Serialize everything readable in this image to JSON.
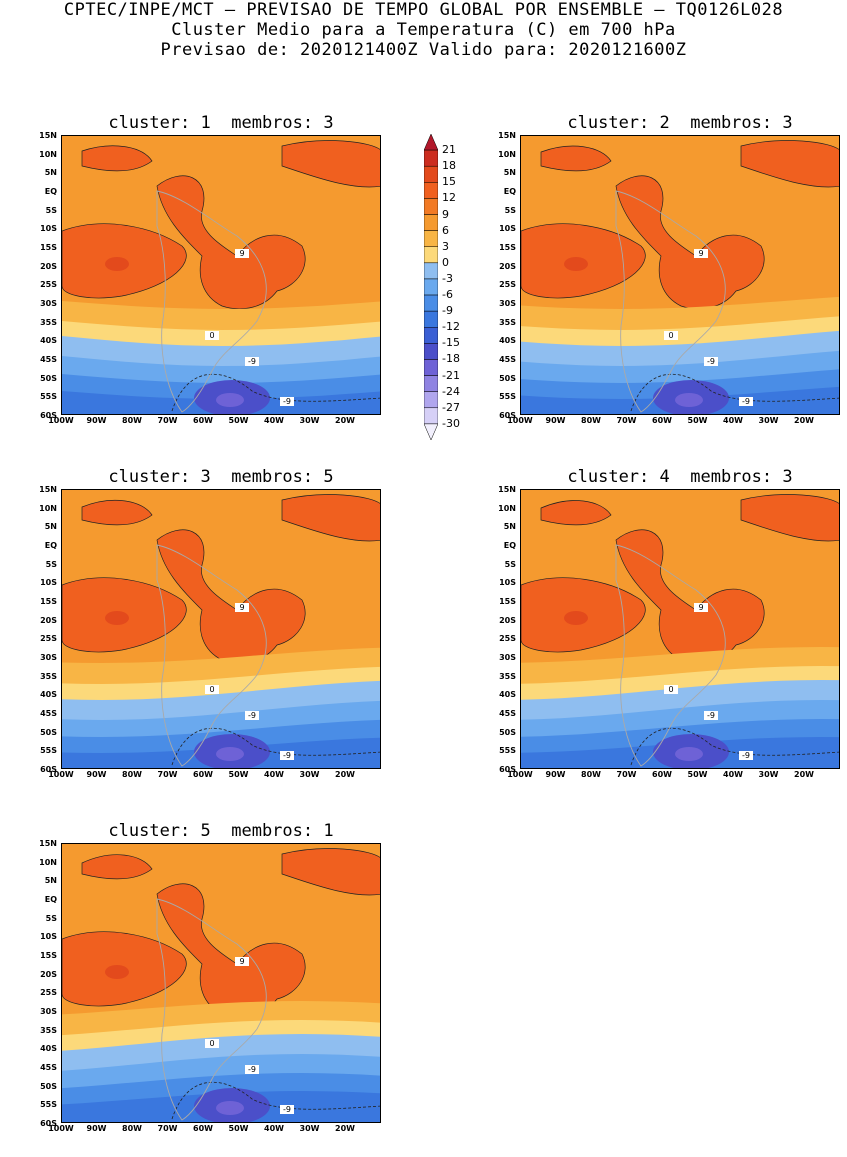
{
  "header": {
    "line1": "CPTEC/INPE/MCT — PREVISAO DE TEMPO GLOBAL POR ENSEMBLE — TQ0126L028",
    "line2": "Cluster Medio para a Temperatura (C) em 700 hPa",
    "line3": "Previsao de: 2020121400Z   Valido para: 2020121600Z"
  },
  "panels": [
    {
      "cluster_label": "cluster: 1",
      "members_label": "membros: 3"
    },
    {
      "cluster_label": "cluster: 2",
      "members_label": "membros: 3"
    },
    {
      "cluster_label": "cluster: 3",
      "members_label": "membros: 5"
    },
    {
      "cluster_label": "cluster: 4",
      "members_label": "membros: 3"
    },
    {
      "cluster_label": "cluster: 5",
      "members_label": "membros: 1"
    }
  ],
  "lat_labels": [
    "15N",
    "10N",
    "5N",
    "EQ",
    "5S",
    "10S",
    "15S",
    "20S",
    "25S",
    "30S",
    "35S",
    "40S",
    "45S",
    "50S",
    "55S",
    "60S"
  ],
  "lon_labels": [
    "100W",
    "90W",
    "80W",
    "70W",
    "60W",
    "50W",
    "40W",
    "30W",
    "20W"
  ],
  "contour_labels": {
    "warm": "9",
    "zero": "0",
    "cold": "-9"
  },
  "colorbar": {
    "levels": [
      "21",
      "18",
      "15",
      "12",
      "9",
      "6",
      "3",
      "0",
      "-3",
      "-6",
      "-9",
      "-12",
      "-15",
      "-18",
      "-21",
      "-24",
      "-27",
      "-30"
    ],
    "colors": [
      "#b2182b",
      "#cc2d1f",
      "#e34a1c",
      "#f0601f",
      "#f27a24",
      "#f59a2f",
      "#f8b545",
      "#fcd97a",
      "#8fbef0",
      "#6aa9ee",
      "#4a8de6",
      "#3a77de",
      "#3a5fd4",
      "#4b4fc9",
      "#6e62d6",
      "#8f83e2",
      "#b0a6ee",
      "#d6d0f7",
      "#f2f0fd"
    ]
  },
  "colors": {
    "warm_main": "#f59a2f",
    "warm_hot": "#f0601f",
    "warm_peak": "#e34a1c",
    "band_light": "#fcd97a",
    "band_mid": "#f8b545",
    "cool_1": "#8fbef0",
    "cool_2": "#6aa9ee",
    "cool_3": "#4a8de6",
    "cool_4": "#3a77de",
    "cool_5": "#4b4fc9",
    "cool_6": "#6e62d6",
    "coast": "#a9a9a9"
  }
}
